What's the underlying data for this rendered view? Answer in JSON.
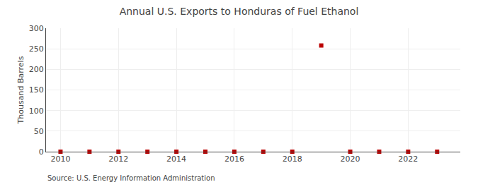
{
  "chart_data": {
    "type": "scatter",
    "title": "Annual U.S. Exports to Honduras of Fuel Ethanol",
    "ylabel": "Thousand Barrels",
    "x": [
      2010,
      2011,
      2012,
      2013,
      2014,
      2015,
      2016,
      2017,
      2018,
      2019,
      2020,
      2021,
      2022,
      2023
    ],
    "values": [
      0,
      0,
      0,
      0,
      0,
      0,
      0,
      0,
      0,
      258,
      0,
      0,
      0,
      0
    ],
    "color": "#bb0000",
    "marker": "square",
    "xlim": [
      2009.5,
      2023.8
    ],
    "xticks": [
      2010,
      2012,
      2014,
      2016,
      2018,
      2020,
      2022
    ],
    "ylim": [
      0,
      300
    ],
    "yticks": [
      0,
      50,
      100,
      150,
      200,
      250,
      300
    ],
    "grid": true,
    "annotations": [
      "Source: U.S. Energy Information Administration"
    ]
  }
}
